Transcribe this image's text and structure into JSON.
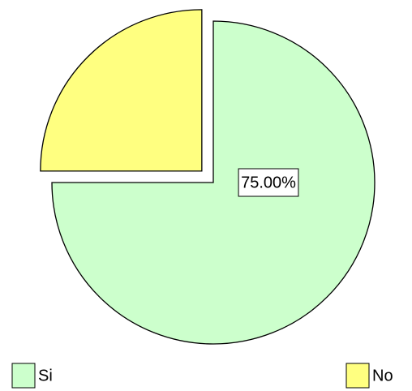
{
  "chart_data": {
    "type": "pie",
    "categories": [
      "Si",
      "No"
    ],
    "values": [
      75,
      25
    ],
    "value_labels": [
      "75.00%",
      null
    ],
    "colors": [
      "#ccffcc",
      "#ffff80"
    ],
    "legend": "bottom"
  }
}
